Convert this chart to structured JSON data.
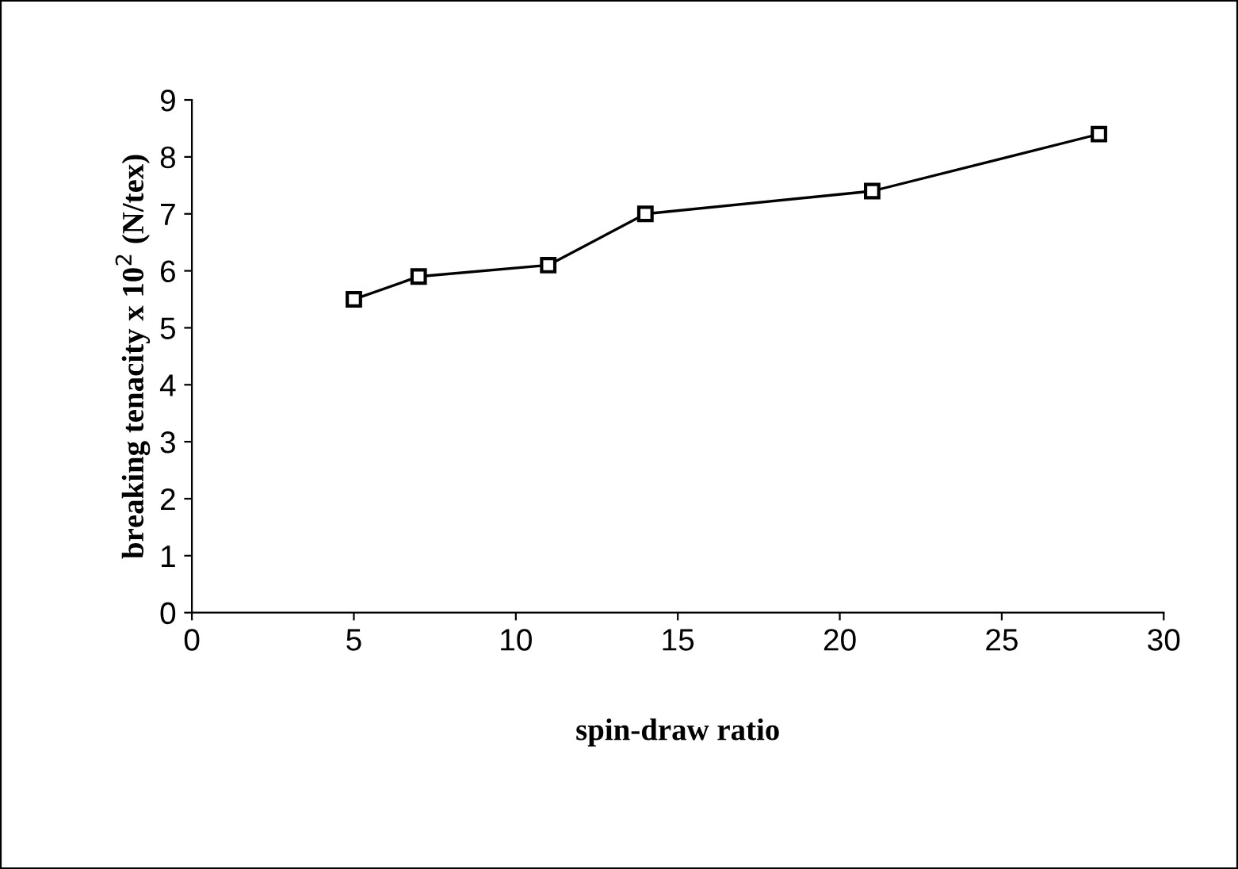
{
  "chart_data": {
    "type": "line",
    "xlabel": "spin-draw ratio",
    "ylabel": "breaking tenacity x 10$^{2}$ (N/tex)",
    "x": [
      5,
      7,
      11,
      14,
      21,
      28
    ],
    "series": [
      {
        "color": "#000000",
        "values": [
          5.5,
          5.9,
          6.1,
          7.0,
          7.4,
          8.4
        ]
      }
    ],
    "xlim": [
      0,
      30
    ],
    "xticks": [
      0,
      5,
      10,
      15,
      20,
      25,
      30
    ],
    "ylim": [
      0,
      9
    ],
    "yticks": [
      0,
      1,
      2,
      3,
      4,
      5,
      6,
      7,
      8,
      9
    ],
    "marker": "square",
    "line_style": "solid",
    "grid": false,
    "legend": false
  }
}
